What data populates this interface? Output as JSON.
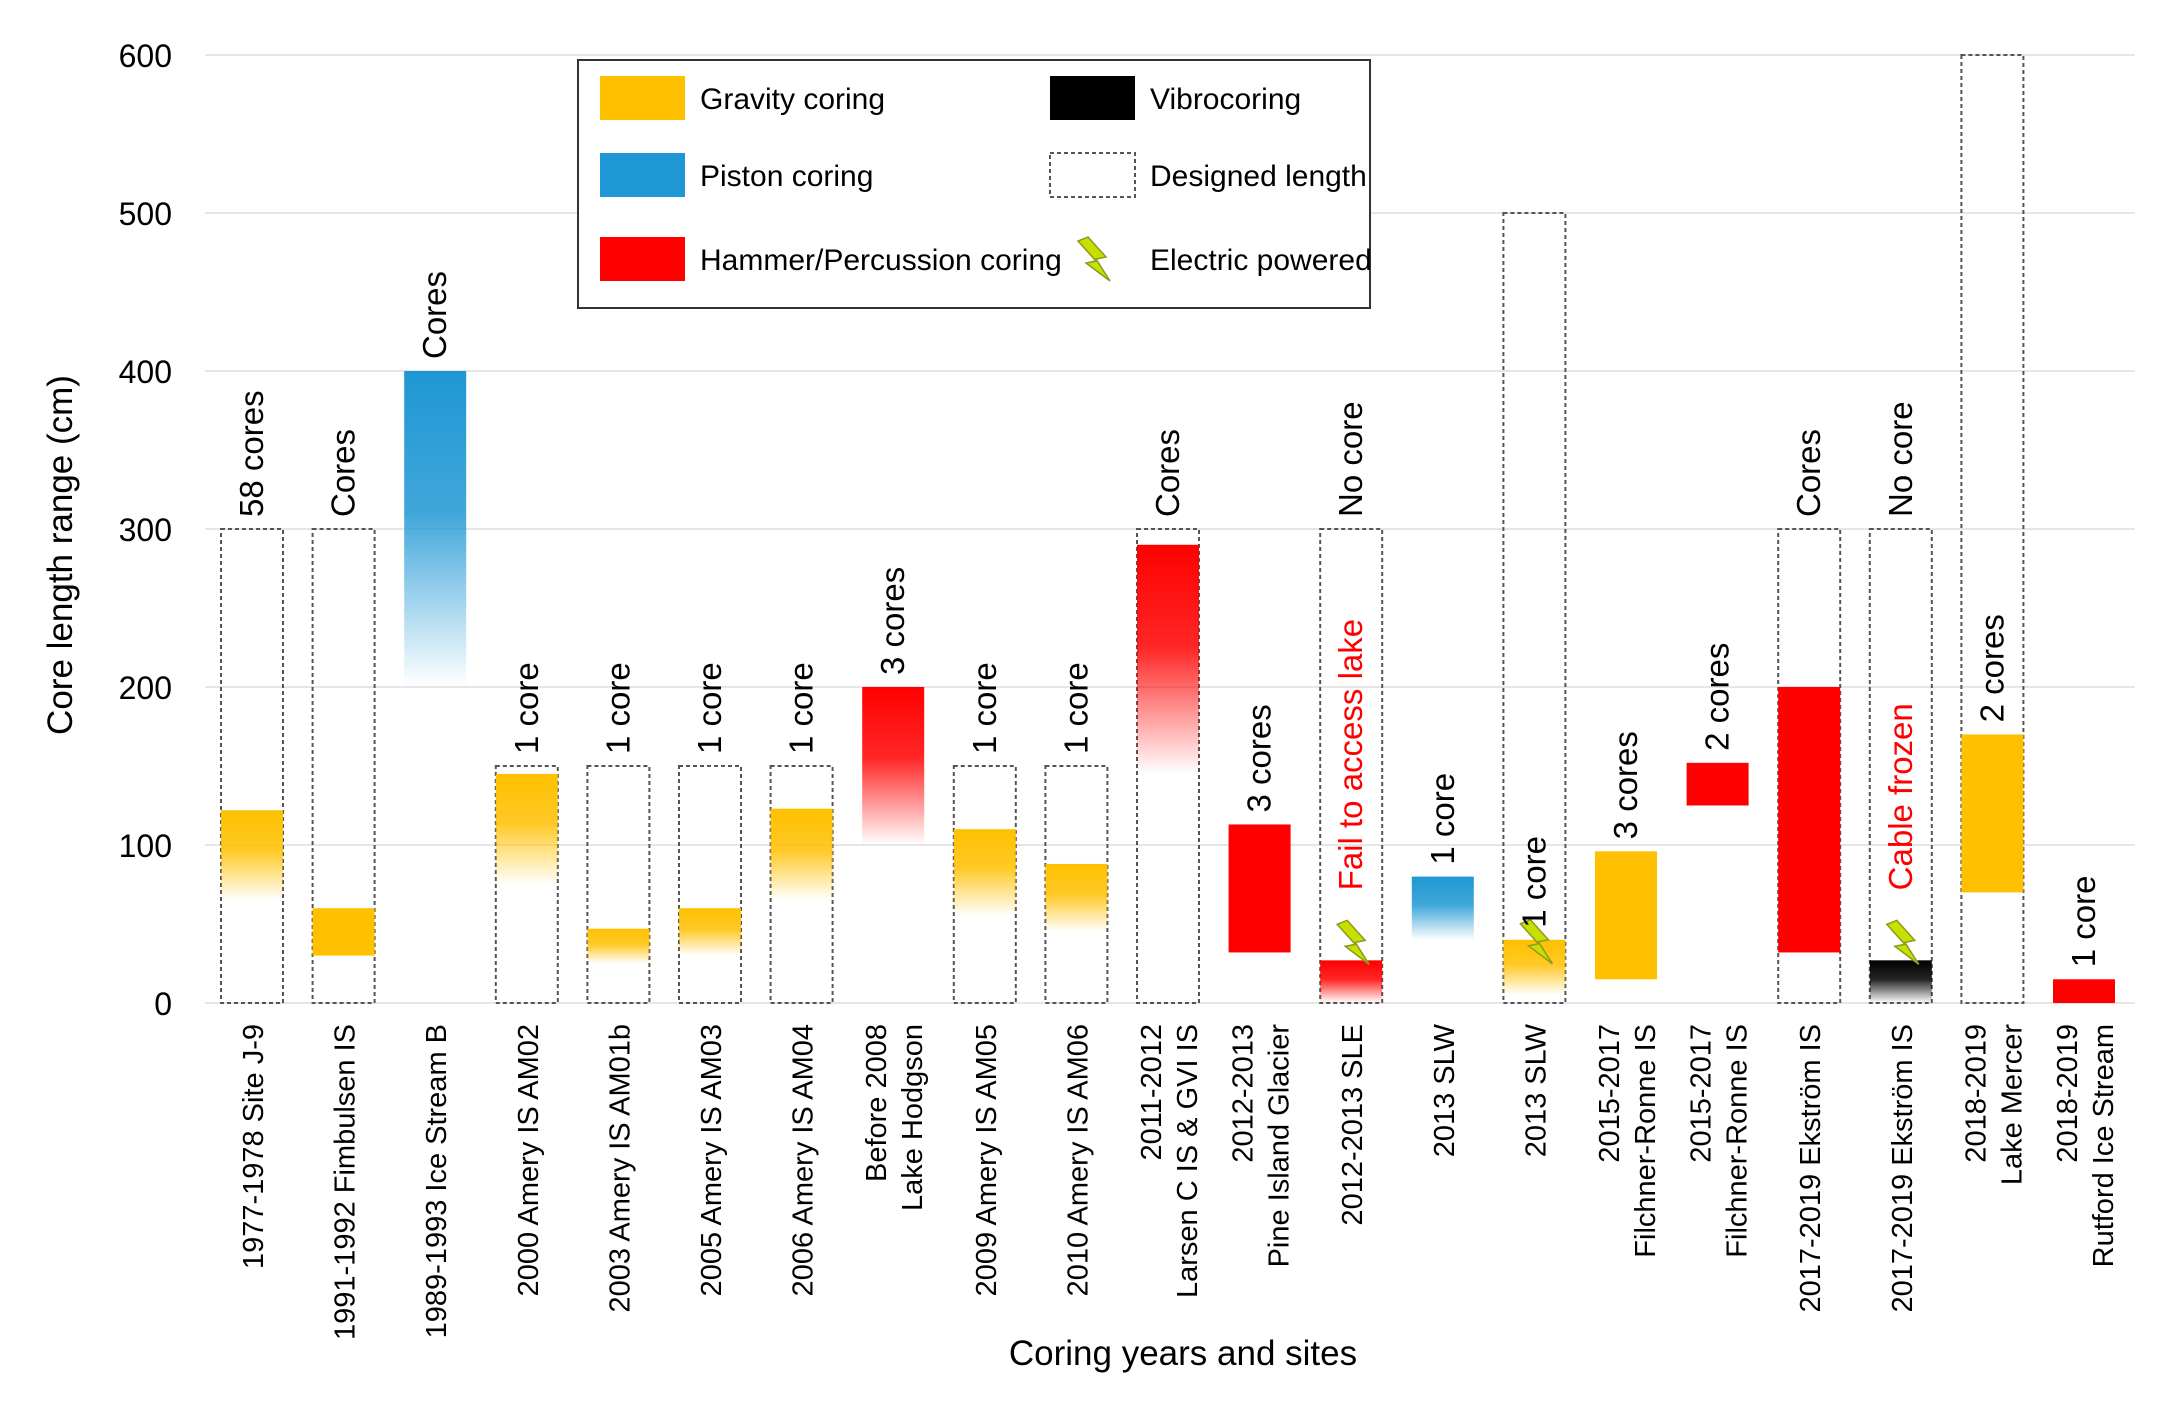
{
  "chart_data": {
    "type": "bar",
    "subtype": "floating-range",
    "title": "",
    "xlabel": "Coring years and sites",
    "ylabel": "Core length range (cm)",
    "ylim": [
      0,
      600
    ],
    "yticks": [
      0,
      100,
      200,
      300,
      400,
      500,
      600
    ],
    "grid": true,
    "legend_position": "top-center",
    "legend": [
      {
        "key": "gravity",
        "label": "Gravity coring",
        "color": "#FFC000"
      },
      {
        "key": "vibro",
        "label": "Vibrocoring",
        "color": "#000000"
      },
      {
        "key": "piston",
        "label": "Piston coring",
        "color": "#1F97D4"
      },
      {
        "key": "designed",
        "label": "Designed length",
        "color": "#555555"
      },
      {
        "key": "hammer",
        "label": "Hammer/Percussion coring",
        "color": "#FF0000"
      },
      {
        "key": "electric",
        "label": "Electric powered",
        "color": "#C8E000"
      }
    ],
    "categories": [
      [
        "1977-1978 Site J-9"
      ],
      [
        "1991-1992 Fimbulsen IS"
      ],
      [
        "1989-1993 Ice Stream B"
      ],
      [
        "2000 Amery IS AM02"
      ],
      [
        "2003 Amery IS AM01b"
      ],
      [
        "2005 Amery IS AM03"
      ],
      [
        "2006 Amery IS AM04"
      ],
      [
        "Before 2008",
        "Lake Hodgson"
      ],
      [
        "2009 Amery IS AM05"
      ],
      [
        "2010 Amery IS AM06"
      ],
      [
        "2011-2012",
        "Larsen C IS & GVI IS"
      ],
      [
        "2012-2013",
        "Pine Island Glacier"
      ],
      [
        "2012-2013 SLE"
      ],
      [
        "2013 SLW"
      ],
      [
        "2013 SLW"
      ],
      [
        "2015-2017",
        "Filchner-Ronne IS"
      ],
      [
        "2015-2017",
        "Filchner-Ronne IS"
      ],
      [
        "2017-2019 Ekström IS"
      ],
      [
        "2017-2019 Ekström IS"
      ],
      [
        "2018-2019",
        "Lake Mercer"
      ],
      [
        "2018-2019",
        "Rutford Ice Stream"
      ]
    ],
    "bars": [
      {
        "method": "gravity",
        "low": 65,
        "high": 122,
        "gradient": true,
        "designed": 300,
        "label": "58 cores",
        "label_color": "#000000",
        "electric": false
      },
      {
        "method": "gravity",
        "low": 30,
        "high": 60,
        "gradient": false,
        "designed": 300,
        "label": "Cores",
        "label_color": "#000000",
        "electric": false
      },
      {
        "method": "piston",
        "low": 200,
        "high": 400,
        "gradient": true,
        "designed": null,
        "label": "Cores",
        "label_color": "#000000",
        "electric": false
      },
      {
        "method": "gravity",
        "low": 75,
        "high": 145,
        "gradient": true,
        "designed": 150,
        "label": "1 core",
        "label_color": "#000000",
        "electric": false
      },
      {
        "method": "gravity",
        "low": 25,
        "high": 47,
        "gradient": true,
        "designed": 150,
        "label": "1 core",
        "label_color": "#000000",
        "electric": false
      },
      {
        "method": "gravity",
        "low": 30,
        "high": 60,
        "gradient": true,
        "designed": 150,
        "label": "1 core",
        "label_color": "#000000",
        "electric": false
      },
      {
        "method": "gravity",
        "low": 65,
        "high": 123,
        "gradient": true,
        "designed": 150,
        "label": "1 core",
        "label_color": "#000000",
        "electric": false
      },
      {
        "method": "hammer",
        "low": 100,
        "high": 200,
        "gradient": true,
        "designed": null,
        "label": "3 cores",
        "label_color": "#000000",
        "electric": false
      },
      {
        "method": "gravity",
        "low": 55,
        "high": 110,
        "gradient": true,
        "designed": 150,
        "label": "1 core",
        "label_color": "#000000",
        "electric": false
      },
      {
        "method": "gravity",
        "low": 45,
        "high": 88,
        "gradient": true,
        "designed": 150,
        "label": "1 core",
        "label_color": "#000000",
        "electric": false
      },
      {
        "method": "hammer",
        "low": 145,
        "high": 290,
        "gradient": true,
        "designed": 300,
        "label": "Cores",
        "label_color": "#000000",
        "electric": false
      },
      {
        "method": "hammer",
        "low": 32,
        "high": 113,
        "gradient": false,
        "designed": null,
        "label": "3 cores",
        "label_color": "#000000",
        "electric": false
      },
      {
        "method": "hammer",
        "low": 0,
        "high": 27,
        "gradient": true,
        "designed": 300,
        "label": "No core",
        "label_color": "#000000",
        "label2": "Fail to access lake",
        "label2_color": "#FF0000",
        "electric": true
      },
      {
        "method": "piston",
        "low": 40,
        "high": 80,
        "gradient": true,
        "designed": null,
        "label": "1 core",
        "label_color": "#000000",
        "electric": false
      },
      {
        "method": "gravity",
        "low": 5,
        "high": 40,
        "gradient": true,
        "designed": 500,
        "label": "1 core",
        "label_color": "#000000",
        "electric": true
      },
      {
        "method": "gravity",
        "low": 15,
        "high": 96,
        "gradient": false,
        "designed": null,
        "label": "3 cores",
        "label_color": "#000000",
        "electric": false
      },
      {
        "method": "hammer",
        "low": 125,
        "high": 152,
        "gradient": false,
        "designed": null,
        "label": "2 cores",
        "label_color": "#000000",
        "electric": false
      },
      {
        "method": "hammer",
        "low": 32,
        "high": 200,
        "gradient": false,
        "designed": 300,
        "label": "Cores",
        "label_color": "#000000",
        "electric": false
      },
      {
        "method": "vibro",
        "low": 0,
        "high": 27,
        "gradient": true,
        "designed": 300,
        "label": "No core",
        "label_color": "#000000",
        "label2": "Cable frozen",
        "label2_color": "#FF0000",
        "electric": true
      },
      {
        "method": "gravity",
        "low": 70,
        "high": 170,
        "gradient": false,
        "designed": 600,
        "label": "2 cores",
        "label_color": "#000000",
        "electric": false
      },
      {
        "method": "hammer",
        "low": 0,
        "high": 15,
        "gradient": false,
        "designed": null,
        "label": "1 core",
        "label_color": "#000000",
        "electric": false
      }
    ]
  }
}
